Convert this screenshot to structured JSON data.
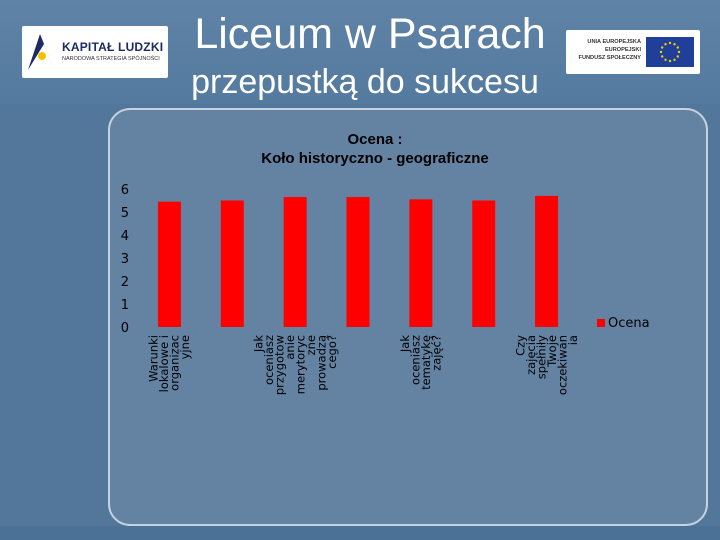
{
  "slide": {
    "title_line1": "Liceum w Psarach",
    "title_line2": "przepustką do sukcesu"
  },
  "logos": {
    "left_name": "KAPITAŁ LUDZKI",
    "left_sub": "NARODOWA STRATEGIA SPÓJNOŚCI",
    "right_lines": [
      "UNIA EUROPEJSKA",
      "EUROPEJSKI",
      "FUNDUSZ SPOŁECZNY"
    ]
  },
  "colors": {
    "bar": "#ff0000",
    "slide_bg": "#53779a",
    "panel": "#6483a3",
    "text": "#000000"
  },
  "chart_data": {
    "type": "bar",
    "title": "Ocena :\nKoło historyczno - geograficzne",
    "title_lines": [
      "Ocena :",
      "Koło historyczno - geograficzne"
    ],
    "ylim": [
      0,
      6
    ],
    "yticks": [
      0,
      1,
      2,
      3,
      4,
      5,
      6
    ],
    "categories": [
      "Warunki lokalowe i organizacyjne",
      "",
      "Jak oceniasz przygotowanie merytoryczne prowadzą cego?",
      "",
      "Jak oceniasz tematykę zajęć?",
      "",
      "Czy zajęcia spełniły Twoje oczekiwania"
    ],
    "category_label_lines": [
      [
        "Warunki",
        "lokalowe i",
        "organizac",
        "yjne"
      ],
      [],
      [
        "Jak",
        "oceniasz",
        "przygotow",
        "anie",
        "merytoryc",
        "zne",
        "prowadzą",
        "cego?"
      ],
      [],
      [
        "Jak",
        "oceniasz",
        "tematykę",
        "zajęć?"
      ],
      [],
      [
        "Czy",
        "zajęcia",
        "spełniły",
        "Twoje",
        "oczekiwan",
        "ia"
      ]
    ],
    "series": [
      {
        "name": "Ocena",
        "values": [
          5.45,
          5.5,
          5.65,
          5.65,
          5.55,
          5.5,
          5.7
        ]
      }
    ],
    "legend": "right",
    "grid": false
  }
}
